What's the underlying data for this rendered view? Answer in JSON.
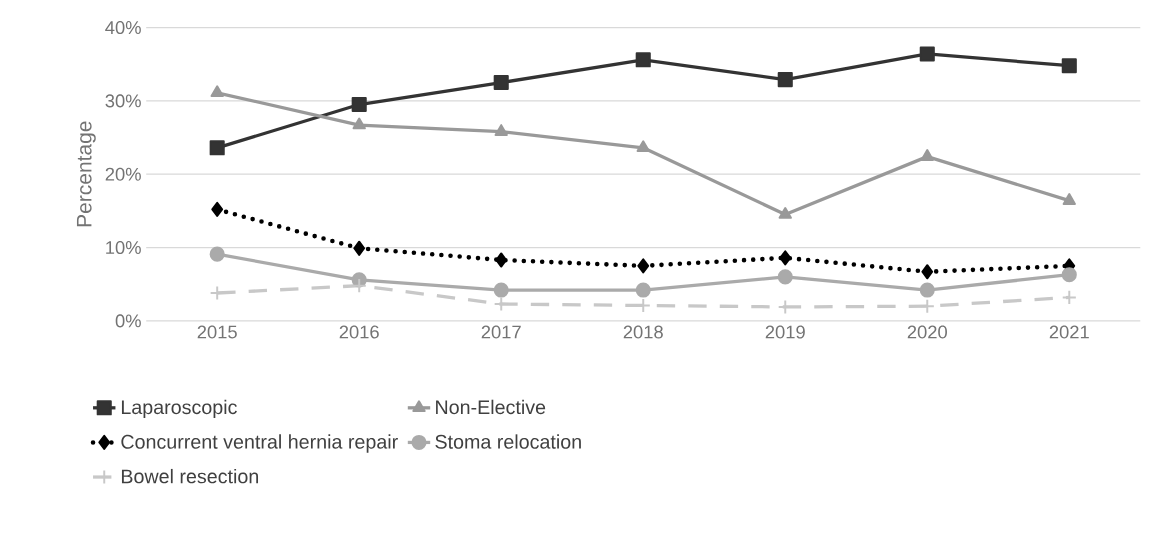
{
  "chart_data": {
    "type": "line",
    "ylabel": "Percentage",
    "categories": [
      "2015",
      "2016",
      "2017",
      "2018",
      "2019",
      "2020",
      "2021"
    ],
    "ylim": [
      0,
      40
    ],
    "yticks": [
      {
        "value": 0,
        "label": "0%"
      },
      {
        "value": 10,
        "label": "10%"
      },
      {
        "value": 20,
        "label": "20%"
      },
      {
        "value": 30,
        "label": "30%"
      },
      {
        "value": 40,
        "label": "40%"
      }
    ],
    "grid": "y",
    "legend": "bottom",
    "series": [
      {
        "name": "Laparoscopic",
        "color": "#333333",
        "marker": "square",
        "line_style": "solid",
        "values": [
          23.6,
          29.5,
          32.5,
          35.6,
          32.9,
          36.4,
          34.8
        ]
      },
      {
        "name": "Non-Elective",
        "color": "#999999",
        "marker": "triangle",
        "line_style": "solid",
        "values": [
          31.1,
          26.7,
          25.8,
          23.6,
          14.5,
          22.4,
          16.4
        ]
      },
      {
        "name": "Concurrent ventral hernia repair",
        "color": "#000000",
        "marker": "diamond",
        "line_style": "dotted",
        "values": [
          15.2,
          9.9,
          8.3,
          7.5,
          8.6,
          6.7,
          7.5
        ]
      },
      {
        "name": "Stoma relocation",
        "color": "#aaaaaa",
        "marker": "circle",
        "line_style": "solid",
        "values": [
          9.1,
          5.6,
          4.2,
          4.2,
          6.0,
          4.2,
          6.3
        ]
      },
      {
        "name": "Bowel resection",
        "color": "#c8c8c8",
        "marker": "cross",
        "line_style": "dashed",
        "values": [
          3.8,
          4.8,
          2.3,
          2.1,
          1.9,
          2.0,
          3.2
        ]
      }
    ]
  }
}
